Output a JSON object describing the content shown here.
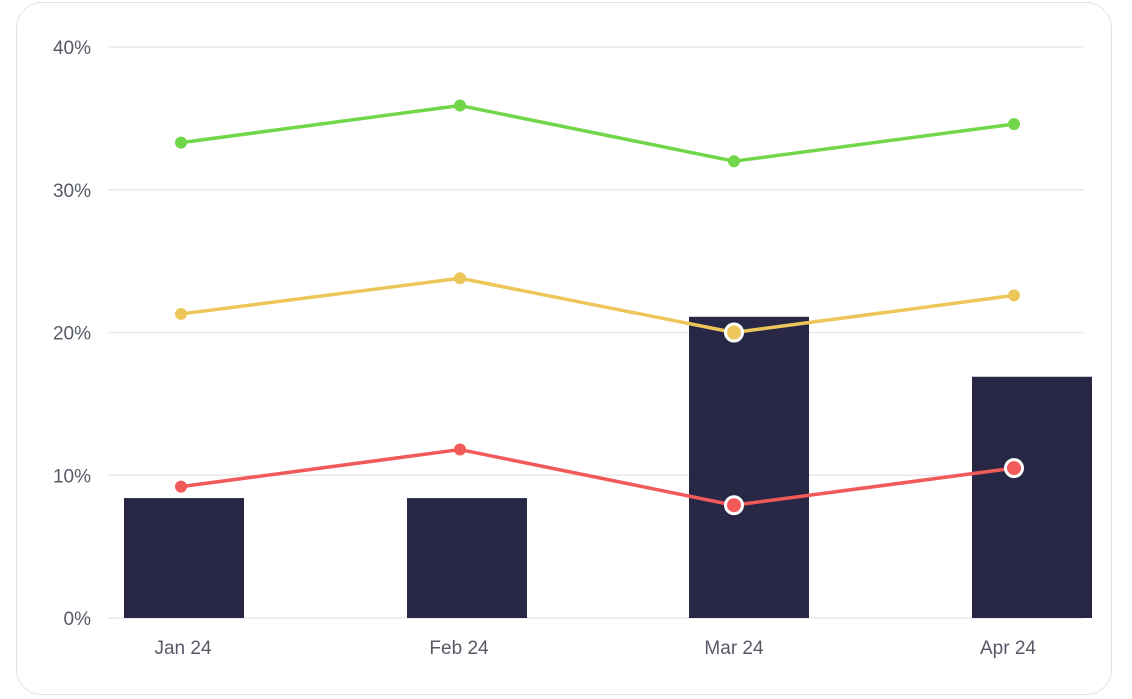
{
  "chart_data": {
    "type": "bar",
    "categories": [
      "Jan 24",
      "Feb 24",
      "Mar 24",
      "Apr 24"
    ],
    "ylim": [
      0,
      40
    ],
    "yticks": [
      0,
      10,
      20,
      30,
      40
    ],
    "ytick_labels": [
      "0%",
      "10%",
      "20%",
      "30%",
      "40%"
    ],
    "grid": true,
    "legend": "none",
    "bar_series": {
      "values": [
        8.4,
        8.4,
        21.1,
        16.9
      ],
      "color": "#282846"
    },
    "line_series": [
      {
        "values": [
          33.3,
          35.9,
          32.0,
          34.6
        ],
        "color": "#72d64a",
        "highlighted": [
          false,
          false,
          false,
          false
        ]
      },
      {
        "values": [
          21.3,
          23.8,
          20.0,
          22.6
        ],
        "color": "#ecc659",
        "highlighted": [
          false,
          false,
          true,
          false
        ]
      },
      {
        "values": [
          9.2,
          11.8,
          7.9,
          10.5
        ],
        "color": "#f25a5a",
        "highlighted": [
          false,
          false,
          true,
          true
        ]
      }
    ],
    "title": "",
    "xlabel": "",
    "ylabel": ""
  }
}
